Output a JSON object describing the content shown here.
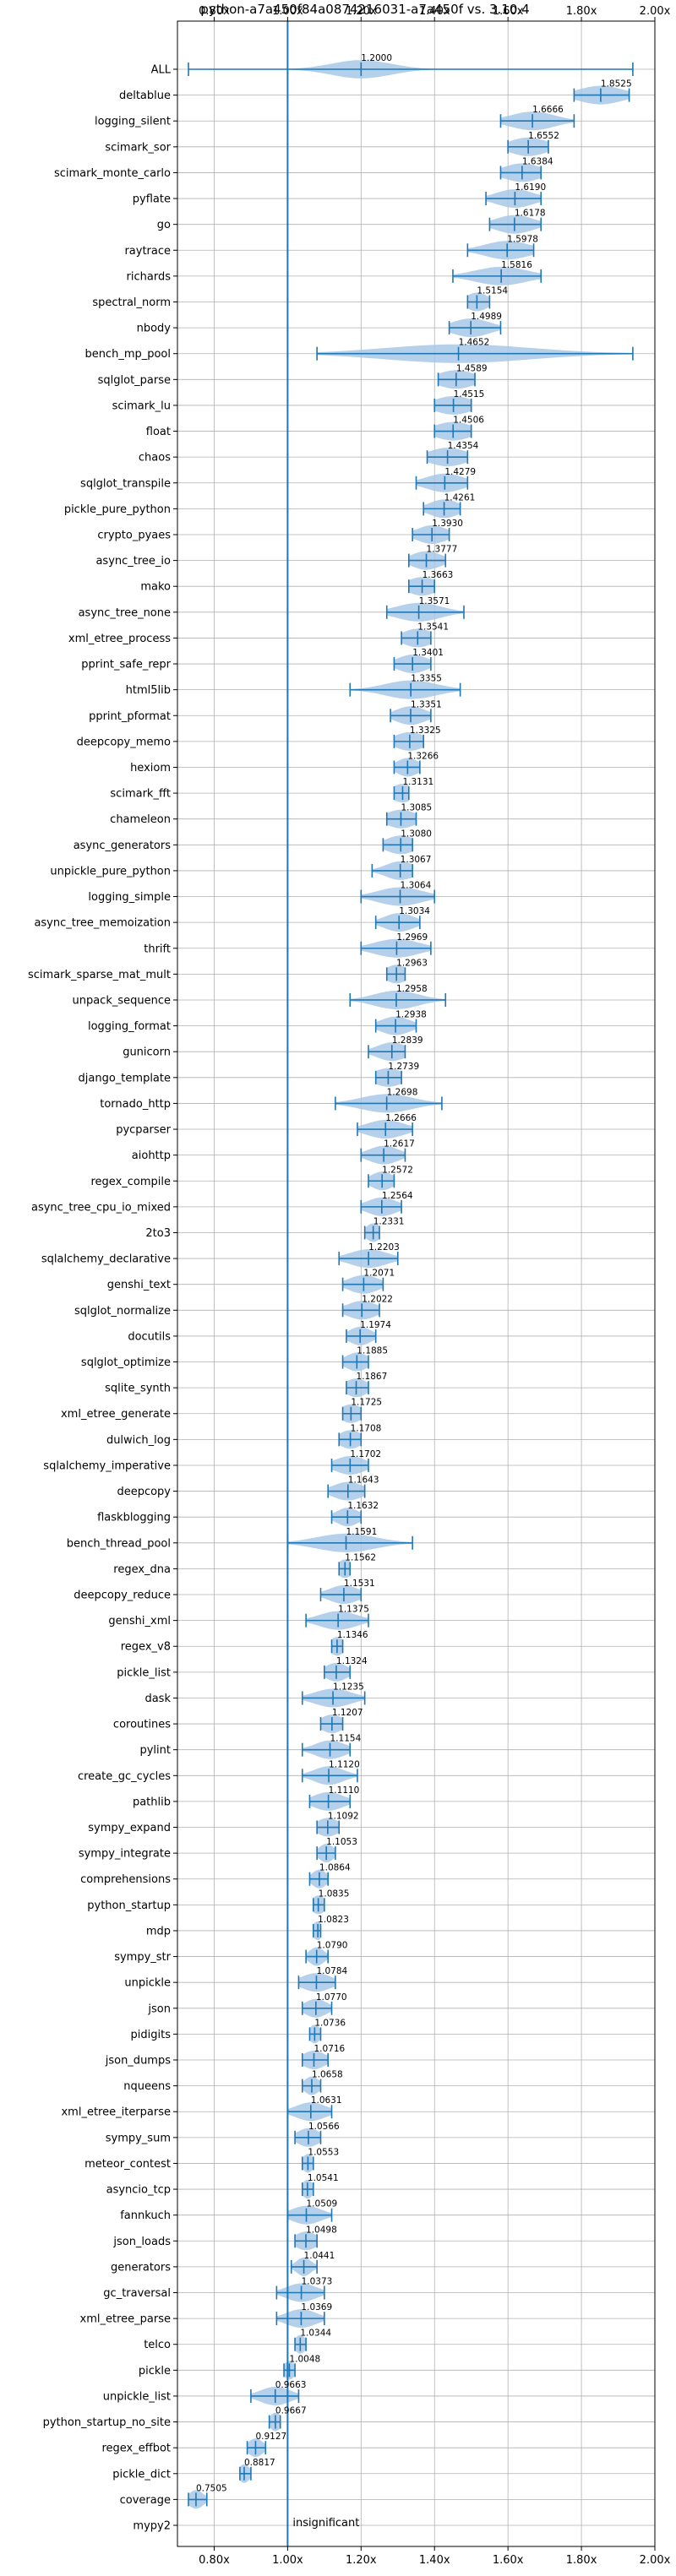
{
  "chart_data": {
    "type": "violin",
    "title": "python-a7a450f84a0874216031-a7a450f vs. 3.10.4",
    "xlabel": "",
    "ylabel": "",
    "x_axis_position": "top-and-bottom",
    "xlim": [
      0.7,
      2.0
    ],
    "xticks": [
      0.8,
      1.0,
      1.2,
      1.4,
      1.6,
      1.8,
      2.0
    ],
    "xtick_labels": [
      "0.80x",
      "1.00x",
      "1.20x",
      "1.40x",
      "1.60x",
      "1.80x",
      "2.00x"
    ],
    "grid": true,
    "reference_line": {
      "x": 1.0,
      "label": "insignificant"
    },
    "colors": {
      "violin": "#a8c8e8",
      "line": "#1f77b4",
      "grid": "#b0b0b0",
      "axis": "#000000"
    },
    "benchmarks": [
      {
        "name": "ALL",
        "value": 1.2,
        "label": "1.2000",
        "min": 0.73,
        "max": 1.94,
        "spread": 0.08
      },
      {
        "name": "deltablue",
        "value": 1.8525,
        "label": "1.8525",
        "min": 1.78,
        "max": 1.93,
        "spread": 0.06
      },
      {
        "name": "logging_silent",
        "value": 1.6666,
        "label": "1.6666",
        "min": 1.58,
        "max": 1.78,
        "spread": 0.06
      },
      {
        "name": "scimark_sor",
        "value": 1.6552,
        "label": "1.6552",
        "min": 1.6,
        "max": 1.71,
        "spread": 0.05
      },
      {
        "name": "scimark_monte_carlo",
        "value": 1.6384,
        "label": "1.6384",
        "min": 1.58,
        "max": 1.69,
        "spread": 0.05
      },
      {
        "name": "pyflate",
        "value": 1.619,
        "label": "1.6190",
        "min": 1.54,
        "max": 1.69,
        "spread": 0.05
      },
      {
        "name": "go",
        "value": 1.6178,
        "label": "1.6178",
        "min": 1.55,
        "max": 1.69,
        "spread": 0.05
      },
      {
        "name": "raytrace",
        "value": 1.5978,
        "label": "1.5978",
        "min": 1.49,
        "max": 1.67,
        "spread": 0.06
      },
      {
        "name": "richards",
        "value": 1.5816,
        "label": "1.5816",
        "min": 1.45,
        "max": 1.69,
        "spread": 0.07
      },
      {
        "name": "spectral_norm",
        "value": 1.5154,
        "label": "1.5154",
        "min": 1.49,
        "max": 1.55,
        "spread": 0.03
      },
      {
        "name": "nbody",
        "value": 1.4989,
        "label": "1.4989",
        "min": 1.44,
        "max": 1.58,
        "spread": 0.05
      },
      {
        "name": "bench_mp_pool",
        "value": 1.4652,
        "label": "1.4652",
        "min": 1.08,
        "max": 1.94,
        "spread": 0.2
      },
      {
        "name": "sqlglot_parse",
        "value": 1.4589,
        "label": "1.4589",
        "min": 1.41,
        "max": 1.51,
        "spread": 0.05
      },
      {
        "name": "scimark_lu",
        "value": 1.4515,
        "label": "1.4515",
        "min": 1.4,
        "max": 1.5,
        "spread": 0.05
      },
      {
        "name": "float",
        "value": 1.4506,
        "label": "1.4506",
        "min": 1.4,
        "max": 1.5,
        "spread": 0.05
      },
      {
        "name": "chaos",
        "value": 1.4354,
        "label": "1.4354",
        "min": 1.38,
        "max": 1.49,
        "spread": 0.05
      },
      {
        "name": "sqlglot_transpile",
        "value": 1.4279,
        "label": "1.4279",
        "min": 1.35,
        "max": 1.49,
        "spread": 0.05
      },
      {
        "name": "pickle_pure_python",
        "value": 1.4261,
        "label": "1.4261",
        "min": 1.37,
        "max": 1.47,
        "spread": 0.04
      },
      {
        "name": "crypto_pyaes",
        "value": 1.393,
        "label": "1.3930",
        "min": 1.34,
        "max": 1.44,
        "spread": 0.04
      },
      {
        "name": "async_tree_io",
        "value": 1.3777,
        "label": "1.3777",
        "min": 1.33,
        "max": 1.43,
        "spread": 0.04
      },
      {
        "name": "mako",
        "value": 1.3663,
        "label": "1.3663",
        "min": 1.33,
        "max": 1.4,
        "spread": 0.04
      },
      {
        "name": "async_tree_none",
        "value": 1.3571,
        "label": "1.3571",
        "min": 1.27,
        "max": 1.48,
        "spread": 0.06
      },
      {
        "name": "xml_etree_process",
        "value": 1.3541,
        "label": "1.3541",
        "min": 1.31,
        "max": 1.39,
        "spread": 0.04
      },
      {
        "name": "pprint_safe_repr",
        "value": 1.3401,
        "label": "1.3401",
        "min": 1.29,
        "max": 1.39,
        "spread": 0.04
      },
      {
        "name": "html5lib",
        "value": 1.3355,
        "label": "1.3355",
        "min": 1.17,
        "max": 1.47,
        "spread": 0.07
      },
      {
        "name": "pprint_pformat",
        "value": 1.3351,
        "label": "1.3351",
        "min": 1.28,
        "max": 1.39,
        "spread": 0.04
      },
      {
        "name": "deepcopy_memo",
        "value": 1.3325,
        "label": "1.3325",
        "min": 1.29,
        "max": 1.37,
        "spread": 0.04
      },
      {
        "name": "hexiom",
        "value": 1.3266,
        "label": "1.3266",
        "min": 1.29,
        "max": 1.36,
        "spread": 0.03
      },
      {
        "name": "scimark_fft",
        "value": 1.3131,
        "label": "1.3131",
        "min": 1.29,
        "max": 1.33,
        "spread": 0.03
      },
      {
        "name": "chameleon",
        "value": 1.3085,
        "label": "1.3085",
        "min": 1.27,
        "max": 1.35,
        "spread": 0.04
      },
      {
        "name": "async_generators",
        "value": 1.308,
        "label": "1.3080",
        "min": 1.26,
        "max": 1.34,
        "spread": 0.04
      },
      {
        "name": "unpickle_pure_python",
        "value": 1.3067,
        "label": "1.3067",
        "min": 1.23,
        "max": 1.34,
        "spread": 0.04
      },
      {
        "name": "logging_simple",
        "value": 1.3064,
        "label": "1.3064",
        "min": 1.2,
        "max": 1.4,
        "spread": 0.06
      },
      {
        "name": "async_tree_memoization",
        "value": 1.3034,
        "label": "1.3034",
        "min": 1.24,
        "max": 1.36,
        "spread": 0.04
      },
      {
        "name": "thrift",
        "value": 1.2969,
        "label": "1.2969",
        "min": 1.2,
        "max": 1.39,
        "spread": 0.06
      },
      {
        "name": "scimark_sparse_mat_mult",
        "value": 1.2963,
        "label": "1.2963",
        "min": 1.27,
        "max": 1.32,
        "spread": 0.03
      },
      {
        "name": "unpack_sequence",
        "value": 1.2958,
        "label": "1.2958",
        "min": 1.17,
        "max": 1.43,
        "spread": 0.06
      },
      {
        "name": "logging_format",
        "value": 1.2938,
        "label": "1.2938",
        "min": 1.24,
        "max": 1.35,
        "spread": 0.04
      },
      {
        "name": "gunicorn",
        "value": 1.2839,
        "label": "1.2839",
        "min": 1.22,
        "max": 1.32,
        "spread": 0.04
      },
      {
        "name": "django_template",
        "value": 1.2739,
        "label": "1.2739",
        "min": 1.24,
        "max": 1.31,
        "spread": 0.04
      },
      {
        "name": "tornado_http",
        "value": 1.2698,
        "label": "1.2698",
        "min": 1.13,
        "max": 1.42,
        "spread": 0.07
      },
      {
        "name": "pycparser",
        "value": 1.2666,
        "label": "1.2666",
        "min": 1.19,
        "max": 1.34,
        "spread": 0.05
      },
      {
        "name": "aiohttp",
        "value": 1.2617,
        "label": "1.2617",
        "min": 1.2,
        "max": 1.32,
        "spread": 0.04
      },
      {
        "name": "regex_compile",
        "value": 1.2572,
        "label": "1.2572",
        "min": 1.22,
        "max": 1.29,
        "spread": 0.03
      },
      {
        "name": "async_tree_cpu_io_mixed",
        "value": 1.2564,
        "label": "1.2564",
        "min": 1.2,
        "max": 1.31,
        "spread": 0.04
      },
      {
        "name": "2to3",
        "value": 1.2331,
        "label": "1.2331",
        "min": 1.21,
        "max": 1.25,
        "spread": 0.02
      },
      {
        "name": "sqlalchemy_declarative",
        "value": 1.2203,
        "label": "1.2203",
        "min": 1.14,
        "max": 1.3,
        "spread": 0.05
      },
      {
        "name": "genshi_text",
        "value": 1.2071,
        "label": "1.2071",
        "min": 1.15,
        "max": 1.26,
        "spread": 0.04
      },
      {
        "name": "sqlglot_normalize",
        "value": 1.2022,
        "label": "1.2022",
        "min": 1.15,
        "max": 1.25,
        "spread": 0.04
      },
      {
        "name": "docutils",
        "value": 1.1974,
        "label": "1.1974",
        "min": 1.16,
        "max": 1.24,
        "spread": 0.03
      },
      {
        "name": "sqlglot_optimize",
        "value": 1.1885,
        "label": "1.1885",
        "min": 1.15,
        "max": 1.22,
        "spread": 0.03
      },
      {
        "name": "sqlite_synth",
        "value": 1.1867,
        "label": "1.1867",
        "min": 1.16,
        "max": 1.22,
        "spread": 0.03
      },
      {
        "name": "xml_etree_generate",
        "value": 1.1725,
        "label": "1.1725",
        "min": 1.15,
        "max": 1.2,
        "spread": 0.03
      },
      {
        "name": "dulwich_log",
        "value": 1.1708,
        "label": "1.1708",
        "min": 1.14,
        "max": 1.2,
        "spread": 0.03
      },
      {
        "name": "sqlalchemy_imperative",
        "value": 1.1702,
        "label": "1.1702",
        "min": 1.12,
        "max": 1.22,
        "spread": 0.04
      },
      {
        "name": "deepcopy",
        "value": 1.1643,
        "label": "1.1643",
        "min": 1.11,
        "max": 1.21,
        "spread": 0.04
      },
      {
        "name": "flaskblogging",
        "value": 1.1632,
        "label": "1.1632",
        "min": 1.12,
        "max": 1.2,
        "spread": 0.03
      },
      {
        "name": "bench_thread_pool",
        "value": 1.1591,
        "label": "1.1591",
        "min": 1.0,
        "max": 1.34,
        "spread": 0.08
      },
      {
        "name": "regex_dna",
        "value": 1.1562,
        "label": "1.1562",
        "min": 1.14,
        "max": 1.17,
        "spread": 0.02
      },
      {
        "name": "deepcopy_reduce",
        "value": 1.1531,
        "label": "1.1531",
        "min": 1.09,
        "max": 1.2,
        "spread": 0.04
      },
      {
        "name": "genshi_xml",
        "value": 1.1375,
        "label": "1.1375",
        "min": 1.05,
        "max": 1.22,
        "spread": 0.05
      },
      {
        "name": "regex_v8",
        "value": 1.1346,
        "label": "1.1346",
        "min": 1.12,
        "max": 1.15,
        "spread": 0.02
      },
      {
        "name": "pickle_list",
        "value": 1.1324,
        "label": "1.1324",
        "min": 1.1,
        "max": 1.17,
        "spread": 0.03
      },
      {
        "name": "dask",
        "value": 1.1235,
        "label": "1.1235",
        "min": 1.04,
        "max": 1.21,
        "spread": 0.05
      },
      {
        "name": "coroutines",
        "value": 1.1207,
        "label": "1.1207",
        "min": 1.09,
        "max": 1.15,
        "spread": 0.03
      },
      {
        "name": "pylint",
        "value": 1.1154,
        "label": "1.1154",
        "min": 1.04,
        "max": 1.17,
        "spread": 0.04
      },
      {
        "name": "create_gc_cycles",
        "value": 1.112,
        "label": "1.1120",
        "min": 1.04,
        "max": 1.19,
        "spread": 0.04
      },
      {
        "name": "pathlib",
        "value": 1.111,
        "label": "1.1110",
        "min": 1.06,
        "max": 1.17,
        "spread": 0.04
      },
      {
        "name": "sympy_expand",
        "value": 1.1092,
        "label": "1.1092",
        "min": 1.08,
        "max": 1.14,
        "spread": 0.03
      },
      {
        "name": "sympy_integrate",
        "value": 1.1053,
        "label": "1.1053",
        "min": 1.08,
        "max": 1.13,
        "spread": 0.02
      },
      {
        "name": "comprehensions",
        "value": 1.0864,
        "label": "1.0864",
        "min": 1.06,
        "max": 1.11,
        "spread": 0.02
      },
      {
        "name": "python_startup",
        "value": 1.0835,
        "label": "1.0835",
        "min": 1.07,
        "max": 1.1,
        "spread": 0.02
      },
      {
        "name": "mdp",
        "value": 1.0823,
        "label": "1.0823",
        "min": 1.07,
        "max": 1.09,
        "spread": 0.015
      },
      {
        "name": "sympy_str",
        "value": 1.079,
        "label": "1.0790",
        "min": 1.05,
        "max": 1.11,
        "spread": 0.02
      },
      {
        "name": "unpickle",
        "value": 1.0784,
        "label": "1.0784",
        "min": 1.03,
        "max": 1.13,
        "spread": 0.04
      },
      {
        "name": "json",
        "value": 1.077,
        "label": "1.0770",
        "min": 1.04,
        "max": 1.12,
        "spread": 0.03
      },
      {
        "name": "pidigits",
        "value": 1.0736,
        "label": "1.0736",
        "min": 1.06,
        "max": 1.09,
        "spread": 0.015
      },
      {
        "name": "json_dumps",
        "value": 1.0716,
        "label": "1.0716",
        "min": 1.04,
        "max": 1.11,
        "spread": 0.03
      },
      {
        "name": "nqueens",
        "value": 1.0658,
        "label": "1.0658",
        "min": 1.04,
        "max": 1.09,
        "spread": 0.02
      },
      {
        "name": "xml_etree_iterparse",
        "value": 1.0631,
        "label": "1.0631",
        "min": 1.0,
        "max": 1.12,
        "spread": 0.04
      },
      {
        "name": "sympy_sum",
        "value": 1.0566,
        "label": "1.0566",
        "min": 1.02,
        "max": 1.09,
        "spread": 0.03
      },
      {
        "name": "meteor_contest",
        "value": 1.0553,
        "label": "1.0553",
        "min": 1.04,
        "max": 1.07,
        "spread": 0.015
      },
      {
        "name": "asyncio_tcp",
        "value": 1.0541,
        "label": "1.0541",
        "min": 1.04,
        "max": 1.07,
        "spread": 0.015
      },
      {
        "name": "fannkuch",
        "value": 1.0509,
        "label": "1.0509",
        "min": 1.0,
        "max": 1.12,
        "spread": 0.04
      },
      {
        "name": "json_loads",
        "value": 1.0498,
        "label": "1.0498",
        "min": 1.02,
        "max": 1.08,
        "spread": 0.03
      },
      {
        "name": "generators",
        "value": 1.0441,
        "label": "1.0441",
        "min": 1.01,
        "max": 1.08,
        "spread": 0.02
      },
      {
        "name": "gc_traversal",
        "value": 1.0373,
        "label": "1.0373",
        "min": 0.97,
        "max": 1.1,
        "spread": 0.04
      },
      {
        "name": "xml_etree_parse",
        "value": 1.0369,
        "label": "1.0369",
        "min": 0.97,
        "max": 1.1,
        "spread": 0.04
      },
      {
        "name": "telco",
        "value": 1.0344,
        "label": "1.0344",
        "min": 1.02,
        "max": 1.05,
        "spread": 0.015
      },
      {
        "name": "pickle",
        "value": 1.0048,
        "label": "1.0048",
        "min": 0.99,
        "max": 1.02,
        "spread": 0.015
      },
      {
        "name": "unpickle_list",
        "value": 0.9663,
        "label": "0.9663",
        "min": 0.9,
        "max": 1.03,
        "spread": 0.04
      },
      {
        "name": "python_startup_no_site",
        "value": 0.9667,
        "label": "0.9667",
        "min": 0.95,
        "max": 0.98,
        "spread": 0.015
      },
      {
        "name": "regex_effbot",
        "value": 0.9127,
        "label": "0.9127",
        "min": 0.89,
        "max": 0.94,
        "spread": 0.02
      },
      {
        "name": "pickle_dict",
        "value": 0.8817,
        "label": "0.8817",
        "min": 0.87,
        "max": 0.9,
        "spread": 0.015
      },
      {
        "name": "coverage",
        "value": 0.7505,
        "label": "0.7505",
        "min": 0.73,
        "max": 0.78,
        "spread": 0.02
      },
      {
        "name": "mypy2",
        "value": null,
        "label": "",
        "min": null,
        "max": null,
        "spread": null
      }
    ]
  }
}
